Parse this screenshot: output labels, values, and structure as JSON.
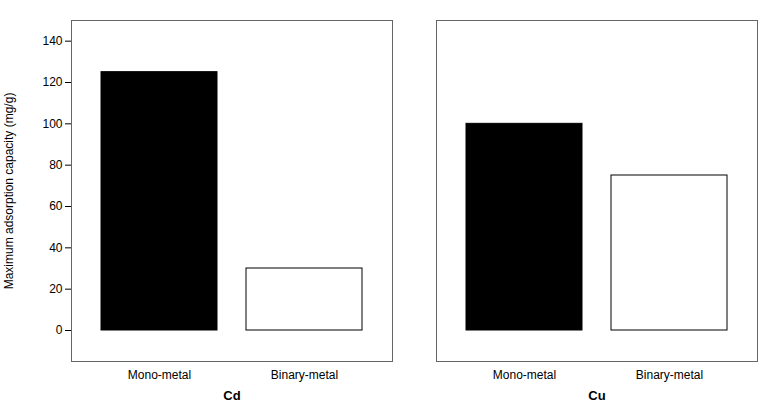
{
  "chart_data": {
    "type": "bar",
    "categories": [
      "Cd",
      "Cu"
    ],
    "series": [
      {
        "name": "Mono-metal",
        "color": "#000000",
        "values": [
          125,
          100
        ]
      },
      {
        "name": "Binary-metal",
        "color": "#ffffff",
        "values": [
          30,
          75
        ]
      }
    ],
    "ylabel": "Maximum adsorption capacity (mg/g)",
    "ylim": [
      -15,
      150
    ],
    "yticks": [
      0,
      20,
      40,
      60,
      80,
      100,
      120,
      140
    ],
    "grid": false
  }
}
